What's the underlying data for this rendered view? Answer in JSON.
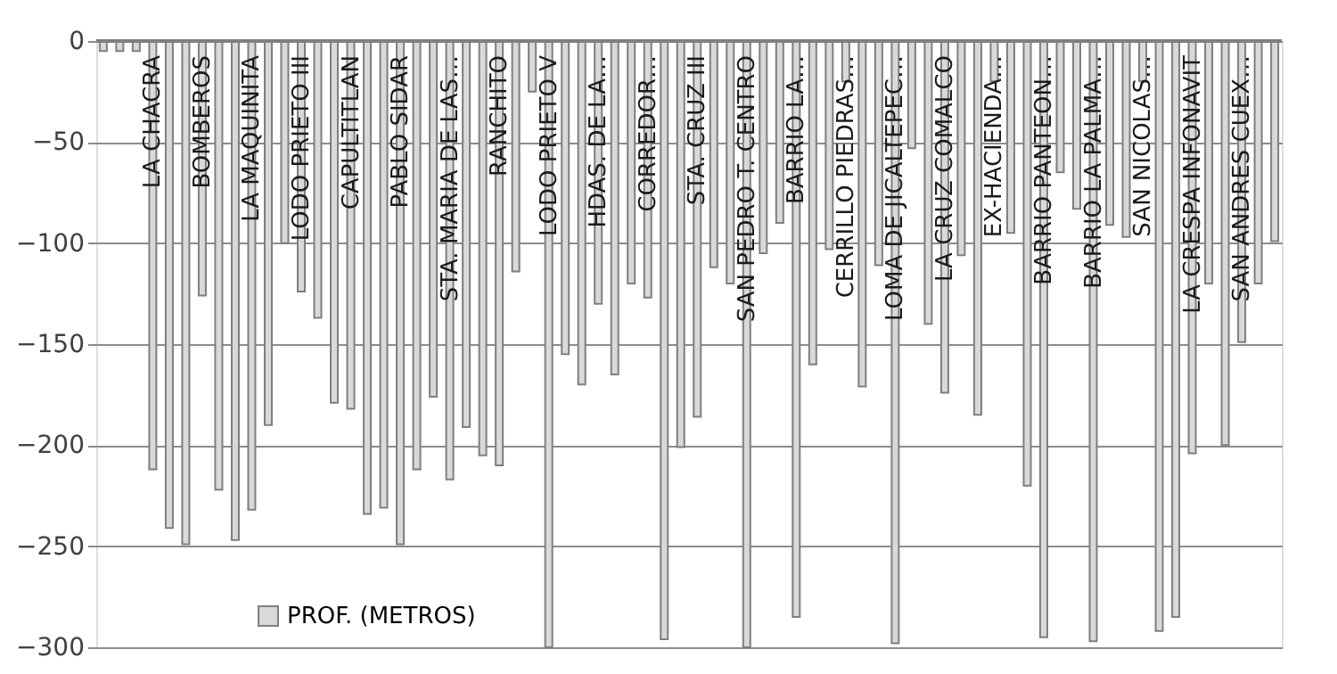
{
  "chart_data": {
    "type": "bar",
    "categories": [
      null,
      null,
      null,
      "LA CHACRA",
      null,
      null,
      "BOMBEROS",
      null,
      null,
      "LA MAQUINITA",
      null,
      null,
      "LODO PRIETO III",
      null,
      null,
      "CAPULTITLAN",
      null,
      null,
      "PABLO SIDAR",
      null,
      null,
      "STA. MARIA DE LAS…",
      null,
      null,
      "RANCHITO",
      null,
      null,
      "LODO PRIETO V",
      null,
      null,
      "HDAS. DE LA…",
      null,
      null,
      "CORREDOR…",
      null,
      null,
      "STA. CRUZ III",
      null,
      null,
      "SAN PEDRO T. CENTRO",
      null,
      null,
      "BARRIO LA…",
      null,
      null,
      "CERRILLO PIEDRAS…",
      null,
      null,
      "LOMA DE JICALTEPEC…",
      null,
      null,
      "LA CRUZ COMALCO",
      null,
      null,
      "EX-HACIENDA…",
      null,
      null,
      "BARRIO PANTEON…",
      null,
      null,
      "BARRIO LA PALMA…",
      null,
      null,
      "SAN NICOLAS…",
      null,
      null,
      "LA CRESPA INFONAVIT",
      null,
      null,
      "SAN ANDRES CUEX…",
      null,
      null
    ],
    "series": [
      {
        "name": "PROF.  (METROS)",
        "color": "#d9d9d9",
        "values": [
          -5,
          -5,
          -5,
          -212,
          -241,
          -249,
          -126,
          -222,
          -247,
          -232,
          -190,
          -100,
          -124,
          -137,
          -179,
          -182,
          -234,
          -231,
          -249,
          -212,
          -176,
          -217,
          -191,
          -205,
          -210,
          -114,
          -25,
          -300,
          -155,
          -170,
          -130,
          -165,
          -120,
          -127,
          -296,
          -201,
          -186,
          -112,
          -120,
          -300,
          -105,
          -90,
          -285,
          -160,
          -103,
          -20,
          -171,
          -111,
          -298,
          -53,
          -140,
          -174,
          -106,
          -185,
          -20,
          -95,
          -220,
          -295,
          -65,
          -83,
          -297,
          -91,
          -97,
          -20,
          -292,
          -285,
          -204,
          -120,
          -200,
          -149,
          -120,
          -99
        ]
      }
    ],
    "ylim": [
      -300,
      0
    ],
    "yticks": [
      -300,
      -250,
      -200,
      -150,
      -100,
      -50,
      0
    ],
    "grid": "y",
    "legend": "bottom left"
  }
}
